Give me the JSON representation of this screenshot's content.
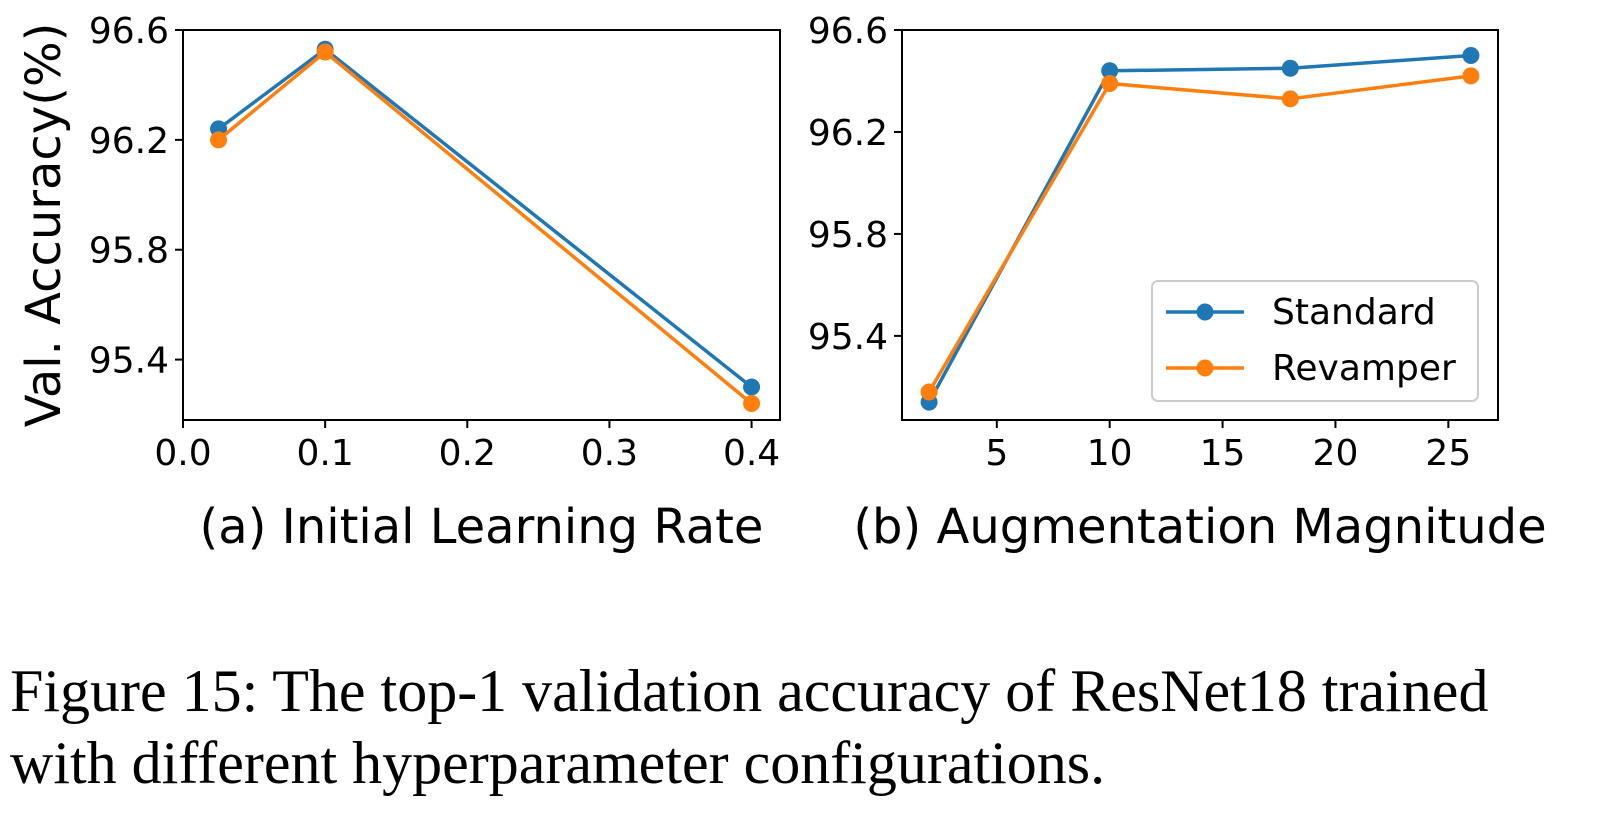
{
  "chart_data": [
    {
      "type": "line",
      "title": "",
      "xlabel": "(a) Initial Learning Rate",
      "ylabel": "Val. Accuracy(%)",
      "xlim": [
        0.0,
        0.42
      ],
      "ylim": [
        95.18,
        96.6
      ],
      "xticks": [
        "0.0",
        "0.1",
        "0.2",
        "0.3",
        "0.4"
      ],
      "yticks": [
        "95.4",
        "95.8",
        "96.2",
        "96.6"
      ],
      "grid": false,
      "x": [
        0.025,
        0.1,
        0.4
      ],
      "series": [
        {
          "name": "Standard",
          "color": "#1f77b4",
          "values": [
            96.24,
            96.53,
            95.3
          ]
        },
        {
          "name": "Revamper",
          "color": "#ff7f0e",
          "values": [
            96.2,
            96.52,
            95.24
          ]
        }
      ]
    },
    {
      "type": "line",
      "title": "",
      "xlabel": "(b) Augmentation Magnitude",
      "ylabel": "",
      "xlim": [
        0.8,
        27.2
      ],
      "ylim": [
        95.07,
        96.6
      ],
      "xticks": [
        "5",
        "10",
        "15",
        "20",
        "25"
      ],
      "yticks": [
        "95.4",
        "95.8",
        "96.2",
        "96.6"
      ],
      "grid": false,
      "legend": "lower-right",
      "x": [
        2,
        10,
        18,
        26
      ],
      "series": [
        {
          "name": "Standard",
          "color": "#1f77b4",
          "values": [
            95.14,
            96.44,
            96.45,
            96.5
          ]
        },
        {
          "name": "Revamper",
          "color": "#ff7f0e",
          "values": [
            95.18,
            96.39,
            96.33,
            96.42
          ]
        }
      ]
    }
  ],
  "caption": {
    "line1": "Figure 15: The top-1 validation accuracy of ResNet18 trained",
    "line2": "with different hyperparameter configurations."
  }
}
